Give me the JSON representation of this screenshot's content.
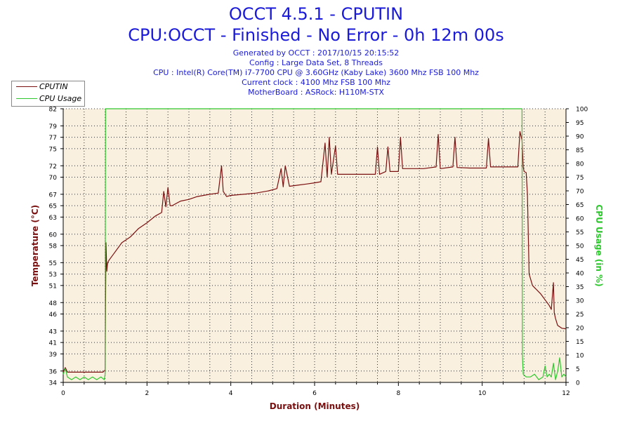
{
  "header": {
    "title": "OCCT 4.5.1 - CPUTIN",
    "subtitle": "CPU:OCCT - Finished - No Error - 0h 12m 00s",
    "info": [
      "Generated by OCCT : 2017/10/15 20:15:52",
      "Config : Large Data Set, 8 Threads",
      "CPU : Intel(R) Core(TM) i7-7700 CPU @ 3.60GHz (Kaby Lake) 3600 Mhz FSB 100 Mhz",
      "Current clock : 4100 Mhz FSB 100 Mhz",
      "MotherBoard : ASRock: H110M-STX"
    ]
  },
  "legend": {
    "items": [
      {
        "label": "CPUTIN",
        "color": "#7a0f0f"
      },
      {
        "label": "CPU Usage",
        "color": "#2ec82e"
      }
    ]
  },
  "colors": {
    "plot_background": "#faf0e0",
    "temperature": "#7a0f0f",
    "usage": "#2ec82e",
    "title": "#1a1ad8",
    "left_axis_label": "#7a0f0f",
    "right_axis_label": "#2ec82e",
    "x_axis_label": "#7a0f0f"
  },
  "chart_data": {
    "type": "line",
    "xlabel": "Duration (Minutes)",
    "ylabel": "Temperature (°C)",
    "y2label": "CPU Usage (in %)",
    "xlim": [
      0,
      12
    ],
    "ylim": [
      34,
      82
    ],
    "y2lim": [
      0,
      100
    ],
    "grid": true,
    "legend_position": "top-left",
    "x_ticks": [
      0,
      2,
      4,
      6,
      8,
      10,
      12
    ],
    "y_ticks": [
      34,
      36,
      39,
      41,
      43,
      46,
      48,
      51,
      53,
      55,
      58,
      60,
      63,
      65,
      67,
      70,
      72,
      75,
      77,
      79,
      82
    ],
    "y2_ticks": [
      0,
      5,
      10,
      15,
      20,
      25,
      30,
      35,
      40,
      45,
      50,
      55,
      60,
      65,
      70,
      75,
      80,
      85,
      90,
      95,
      100
    ],
    "series": [
      {
        "name": "CPUTIN",
        "axis": "left",
        "x": [
          0,
          0.05,
          0.1,
          0.3,
          0.6,
          0.95,
          1.0,
          1.02,
          1.04,
          1.06,
          1.1,
          1.2,
          1.4,
          1.6,
          1.8,
          2.0,
          2.2,
          2.35,
          2.4,
          2.45,
          2.5,
          2.55,
          2.6,
          2.8,
          3.0,
          3.2,
          3.5,
          3.7,
          3.78,
          3.82,
          3.9,
          4.0,
          4.3,
          4.6,
          4.9,
          5.1,
          5.2,
          5.25,
          5.3,
          5.4,
          5.6,
          5.8,
          6.0,
          6.15,
          6.25,
          6.3,
          6.35,
          6.4,
          6.5,
          6.55,
          6.6,
          6.7,
          6.9,
          7.2,
          7.45,
          7.5,
          7.55,
          7.7,
          7.75,
          7.8,
          8.0,
          8.05,
          8.1,
          8.3,
          8.6,
          8.9,
          8.95,
          9.0,
          9.3,
          9.35,
          9.4,
          9.7,
          10.1,
          10.15,
          10.2,
          10.6,
          10.85,
          10.9,
          10.95,
          10.98,
          11.0,
          11.05,
          11.08,
          11.12,
          11.2,
          11.4,
          11.6,
          11.65,
          11.7,
          11.72,
          11.75,
          11.8,
          11.9,
          12.0
        ],
        "values": [
          35.8,
          36.6,
          35.8,
          35.8,
          35.8,
          35.8,
          36.2,
          58.5,
          53.5,
          55.0,
          55.5,
          56.5,
          58.5,
          59.5,
          61.0,
          62.0,
          63.2,
          63.8,
          67.5,
          64.8,
          68.2,
          65.0,
          65.0,
          65.8,
          66.1,
          66.6,
          67.0,
          67.2,
          72.0,
          67.5,
          66.6,
          66.8,
          67.0,
          67.2,
          67.6,
          68.0,
          71.5,
          68.3,
          72.0,
          68.4,
          68.6,
          68.8,
          69.0,
          69.2,
          76.0,
          70.0,
          77.0,
          70.5,
          75.5,
          70.5,
          70.5,
          70.5,
          70.5,
          70.5,
          70.5,
          75.3,
          70.5,
          71.0,
          75.3,
          71.0,
          71.0,
          77.0,
          71.5,
          71.5,
          71.5,
          71.8,
          77.5,
          71.5,
          71.8,
          77.0,
          71.7,
          71.6,
          71.6,
          76.8,
          71.8,
          71.8,
          71.8,
          78.0,
          76.5,
          71.8,
          71.0,
          70.8,
          67.0,
          53.0,
          51.0,
          49.5,
          47.5,
          46.8,
          51.5,
          46.2,
          45.2,
          44.0,
          43.5,
          43.4
        ]
      },
      {
        "name": "CPU Usage",
        "axis": "right",
        "x": [
          0,
          0.05,
          0.1,
          0.2,
          0.3,
          0.4,
          0.5,
          0.6,
          0.7,
          0.8,
          0.9,
          0.98,
          1.0,
          1.01,
          10.95,
          10.96,
          10.98,
          11.05,
          11.15,
          11.25,
          11.35,
          11.45,
          11.5,
          11.55,
          11.6,
          11.65,
          11.7,
          11.75,
          11.8,
          11.85,
          11.9,
          11.95,
          12.0
        ],
        "values": [
          3,
          5,
          2,
          1,
          2,
          1,
          2,
          1,
          2,
          1,
          2,
          1,
          3,
          100,
          100,
          10,
          3,
          2,
          2,
          3,
          1,
          2,
          6,
          2,
          3,
          2,
          7,
          1,
          4,
          9,
          2,
          3,
          2
        ]
      }
    ]
  }
}
